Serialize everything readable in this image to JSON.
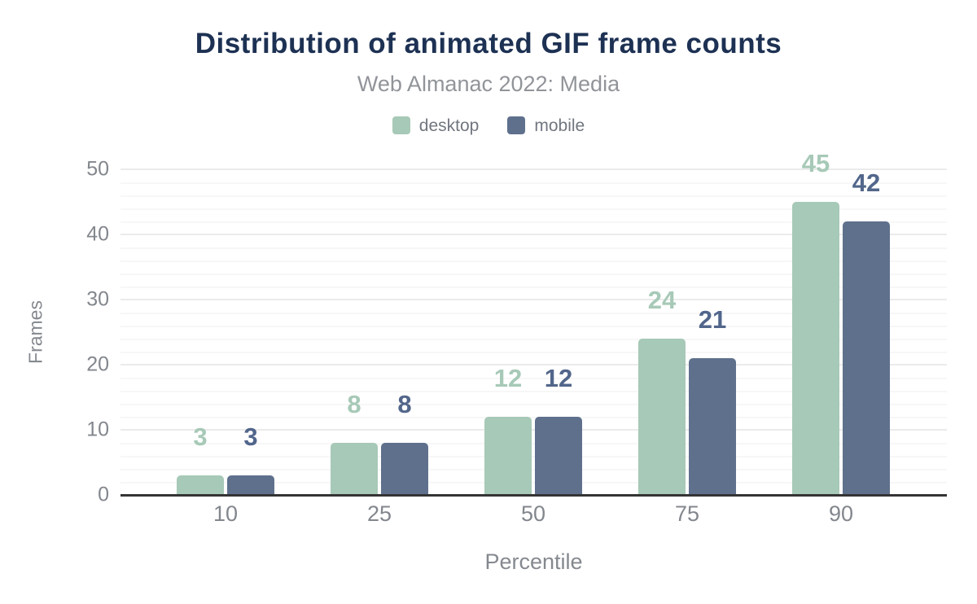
{
  "chart_data": {
    "type": "bar",
    "title": "Distribution of animated GIF frame counts",
    "subtitle": "Web Almanac 2022: Media",
    "xlabel": "Percentile",
    "ylabel": "Frames",
    "categories": [
      "10",
      "25",
      "50",
      "75",
      "90"
    ],
    "series": [
      {
        "name": "desktop",
        "color": "#a7c9b7",
        "label_color": "#a7c9b7",
        "values": [
          3,
          8,
          12,
          24,
          45
        ]
      },
      {
        "name": "mobile",
        "color": "#5e708c",
        "label_color": "#52668b",
        "values": [
          3,
          8,
          12,
          21,
          42
        ]
      }
    ],
    "ylim": [
      0,
      50
    ],
    "yticks": [
      0,
      10,
      20,
      30,
      40,
      50
    ],
    "grid": {
      "enabled": true,
      "major_step": 10,
      "minor_step": 2
    },
    "legend_position": "top",
    "value_labels": true
  },
  "colors": {
    "background": "#ffffff",
    "title": "#1d3153",
    "subtitle": "#919499",
    "legend_text": "#71767f",
    "tick_label": "#83878d",
    "axis_title": "#85898f",
    "axis_line": "#343434",
    "grid_major": "#ebebeb",
    "grid_minor": "#f7f7f7"
  }
}
